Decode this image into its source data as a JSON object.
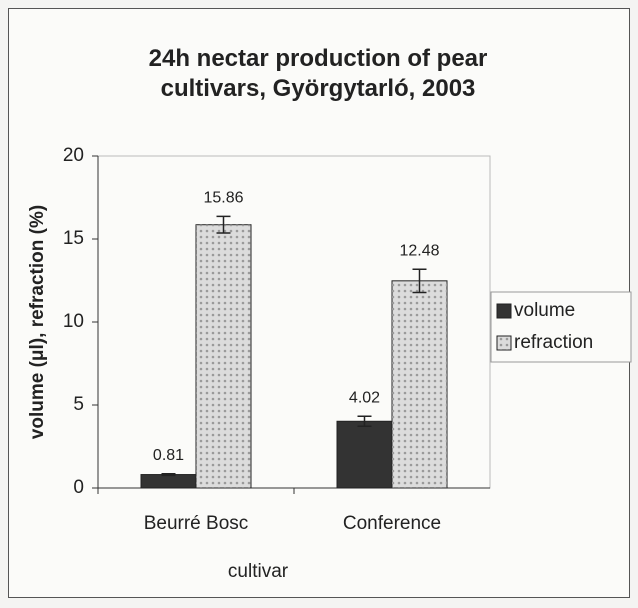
{
  "chart_data": {
    "type": "bar",
    "title": "24h nectar production of pear cultivars, Györgytarló, 2003",
    "x_label": "cultivar",
    "y_label": "volume (μl), refraction (%)",
    "categories": [
      "Beurré Bosc",
      "Conference"
    ],
    "series": [
      {
        "name": "volume",
        "color": "#333333",
        "values": [
          0.81,
          4.02
        ],
        "errors": [
          0.05,
          0.3
        ]
      },
      {
        "name": "refraction",
        "color": "#dcdcdc",
        "pattern": "dots",
        "values": [
          15.86,
          12.48
        ],
        "errors": [
          0.5,
          0.7
        ]
      }
    ],
    "ylim": [
      0,
      20
    ],
    "yticks": [
      0,
      5,
      10,
      15,
      20
    ],
    "grid": false,
    "legend": "right"
  }
}
